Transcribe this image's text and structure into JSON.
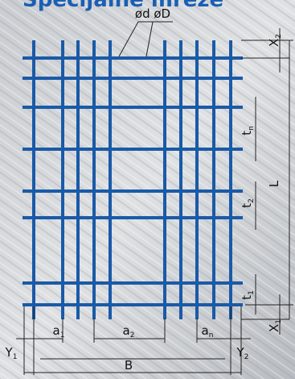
{
  "title": "Specijalne mreže",
  "diameters": "ød øD",
  "labels": {
    "x2": {
      "text": "X",
      "sub": "2"
    },
    "tn": {
      "text": "t",
      "sub": "n"
    },
    "L": {
      "text": "L"
    },
    "t2": {
      "text": "t",
      "sub": "2"
    },
    "t1": {
      "text": "t",
      "sub": "1"
    },
    "x1": {
      "text": "X",
      "sub": "1"
    },
    "a1": {
      "text": "a",
      "sub": "1"
    },
    "a2": {
      "text": "a",
      "sub": "2"
    },
    "an": {
      "text": "a",
      "sub": "n"
    },
    "y1": {
      "text": "Y",
      "sub": "1"
    },
    "y2": {
      "text": "Y",
      "sub": "2"
    },
    "B": {
      "text": "B"
    }
  }
}
